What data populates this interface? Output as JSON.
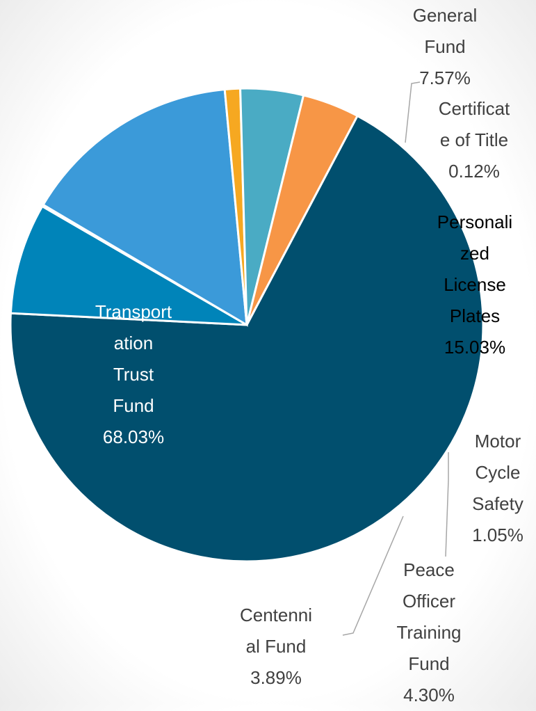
{
  "chart_data": {
    "type": "pie",
    "categories": [
      "Transportation Trust Fund",
      "General Fund",
      "Certificate of Title",
      "Personalized License Plates",
      "Motor Cycle Safety",
      "Peace Officer Training Fund",
      "Centennial Fund"
    ],
    "values": [
      68.03,
      7.57,
      0.12,
      15.03,
      1.05,
      4.3,
      3.89
    ],
    "value_labels": [
      "68.03%",
      "7.57%",
      "0.12%",
      "15.03%",
      "1.05%",
      "4.30%",
      "3.89%"
    ],
    "colors": [
      "#014f6e",
      "#0084b9",
      "#9a9a9a",
      "#3b9ad9",
      "#f6a821",
      "#4aabc4",
      "#f79646"
    ]
  }
}
